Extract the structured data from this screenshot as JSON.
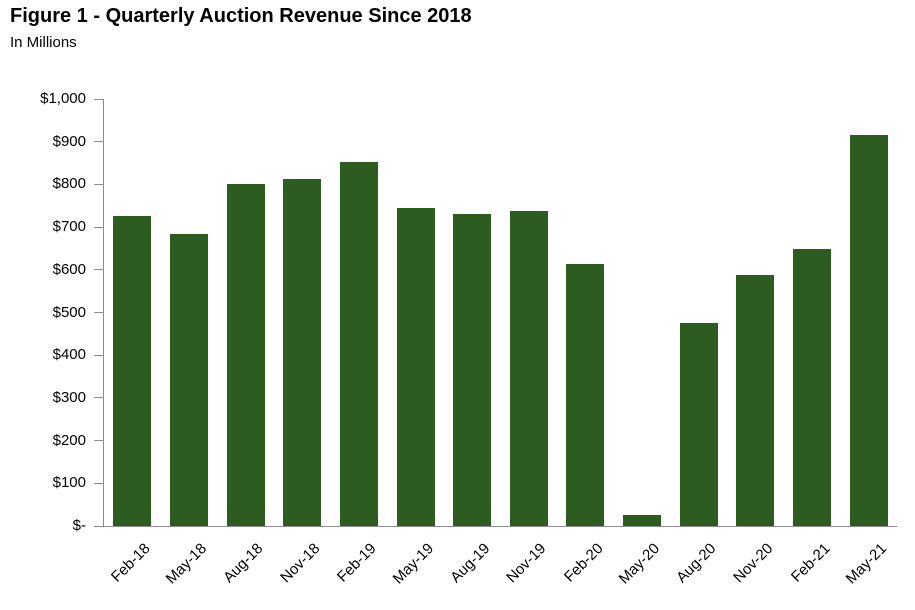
{
  "title": "Figure 1 - Quarterly Auction Revenue Since 2018",
  "subtitle": "In Millions",
  "colors": {
    "bar": "#2d5c21",
    "axis": "#8c8c8c",
    "text": "#000000",
    "background": "#ffffff"
  },
  "chart_data": {
    "type": "bar",
    "title": "Figure 1 - Quarterly Auction Revenue Since 2018",
    "subtitle": "In Millions",
    "units": "USD millions",
    "categories": [
      "Feb-18",
      "May-18",
      "Aug-18",
      "Nov-18",
      "Feb-19",
      "May-19",
      "Aug-19",
      "Nov-19",
      "Feb-20",
      "May-20",
      "Aug-20",
      "Nov-20",
      "Feb-21",
      "May-21"
    ],
    "values": [
      727,
      683,
      800,
      813,
      852,
      744,
      730,
      737,
      614,
      25,
      476,
      589,
      648,
      916
    ],
    "xlabel": "",
    "ylabel": "",
    "ylim": [
      0,
      1000
    ],
    "grid": false,
    "legend": false,
    "bar_color": "#2d5c21",
    "x_tick_rotation_deg": 45,
    "y_ticks": [
      {
        "value": 0,
        "label": "$-"
      },
      {
        "value": 100,
        "label": "$100"
      },
      {
        "value": 200,
        "label": "$200"
      },
      {
        "value": 300,
        "label": "$300"
      },
      {
        "value": 400,
        "label": "$400"
      },
      {
        "value": 500,
        "label": "$500"
      },
      {
        "value": 600,
        "label": "$600"
      },
      {
        "value": 700,
        "label": "$700"
      },
      {
        "value": 800,
        "label": "$800"
      },
      {
        "value": 900,
        "label": "$900"
      },
      {
        "value": 1000,
        "label": "$1,000"
      }
    ]
  }
}
